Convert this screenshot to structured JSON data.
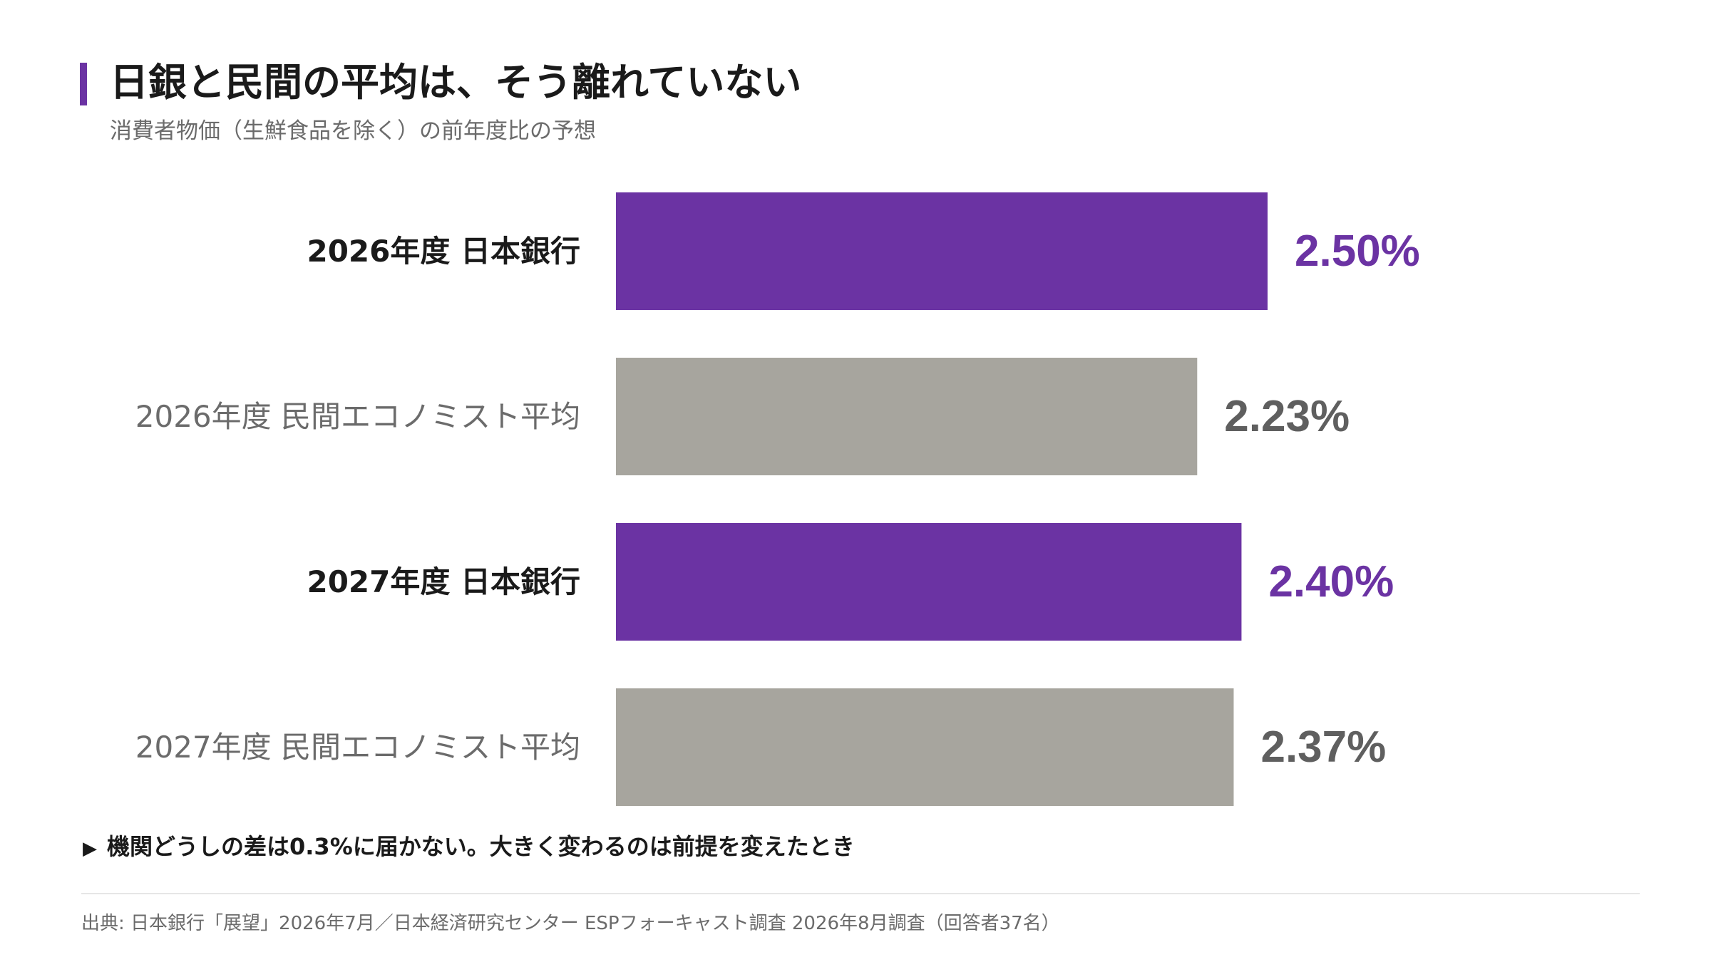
{
  "header": {
    "title": "日銀と民間の平均は、そう離れていない",
    "subtitle": "消費者物価（生鮮食品を除く）の前年度比の予想"
  },
  "colors": {
    "accent": "#6b33a3",
    "boj_bar": "#6b33a3",
    "private_bar": "#a7a59e",
    "boj_value": "#6b33a3",
    "private_value": "#5f5f5f",
    "boj_label": "#1a1a1a",
    "private_label": "#6b6b6b"
  },
  "chart_data": {
    "type": "bar",
    "orientation": "horizontal",
    "categories": [
      "2026年度 日本銀行",
      "2026年度 民間エコノミスト平均",
      "2027年度 日本銀行",
      "2027年度 民間エコノミスト平均"
    ],
    "values": [
      2.5,
      2.23,
      2.4,
      2.37
    ],
    "value_labels": [
      "2.50%",
      "2.23%",
      "2.40%",
      "2.37%"
    ],
    "groups": [
      "boj",
      "private",
      "boj",
      "private"
    ],
    "xlim": [
      0,
      2.5
    ],
    "grid": false
  },
  "footer": {
    "arrow": "▶",
    "note": "機関どうしの差は0.3%に届かない。大きく変わるのは前提を変えたとき",
    "source": "出典: 日本銀行「展望」2026年7月／日本経済研究センター ESPフォーキャスト調査 2026年8月調査（回答者37名）"
  }
}
